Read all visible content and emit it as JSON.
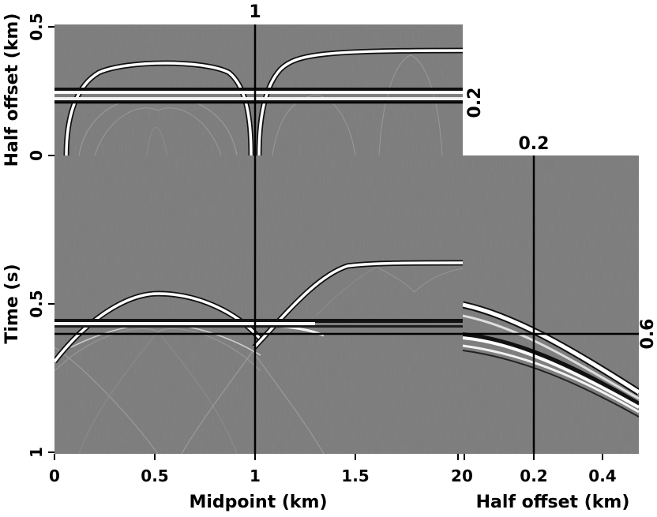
{
  "figure": {
    "top_panel": {
      "y_label": "Half offset (km)",
      "y_ticks": [
        "0.5",
        "0"
      ],
      "crosshair_x_label": "1",
      "crosshair_y_label": "0.2"
    },
    "main_panel": {
      "y_label": "Time (s)",
      "y_ticks": [
        "0.5",
        "1"
      ],
      "x_ticks": [
        "0",
        "0.5",
        "1",
        "1.5",
        "2"
      ],
      "x_label": "Midpoint (km)"
    },
    "side_panel": {
      "x_ticks": [
        "0",
        "0.2",
        "0.4"
      ],
      "x_label": "Half offset (km)",
      "crosshair_x_label": "0.2",
      "crosshair_y_label": "0.6"
    }
  }
}
